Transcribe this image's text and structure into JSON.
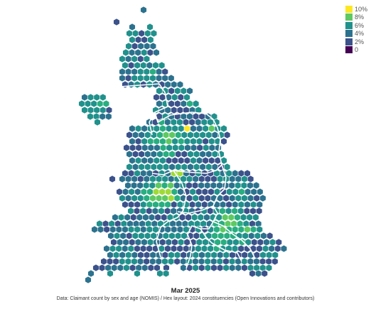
{
  "period": "Mar 2025",
  "source": "Data: Claimant count by sex and age (NOMIS) / Hex layout: 2024 constituencies (Open Innovations and contributors)",
  "legend": {
    "items": [
      {
        "label": "10%",
        "color": "#fde725"
      },
      {
        "label": "8%",
        "color": "#5ec962"
      },
      {
        "label": "6%",
        "color": "#21918c"
      },
      {
        "label": "4%",
        "color": "#2c728e"
      },
      {
        "label": "2%",
        "color": "#3b528b"
      },
      {
        "label": "0",
        "color": "#440154"
      }
    ]
  },
  "colors": {
    "v0": "#413d84",
    "v1": "#3b528b",
    "v2": "#2c728e",
    "v3": "#21918c",
    "v4": "#28ae80",
    "v5": "#5ec962",
    "v6": "#a0da39",
    "v7": "#fde725"
  }
}
